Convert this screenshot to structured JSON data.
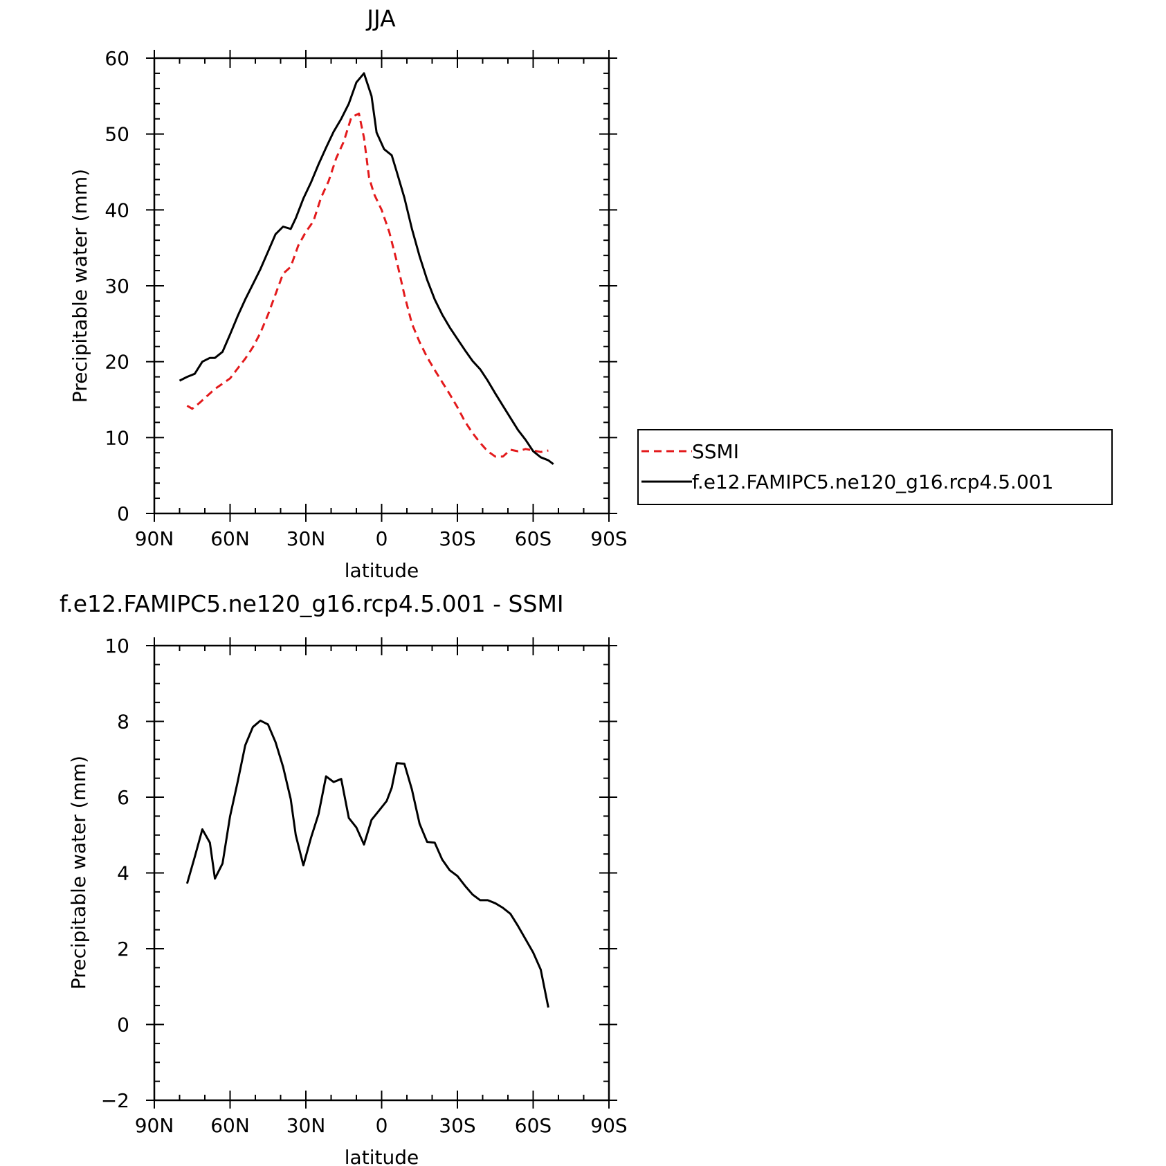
{
  "colors": {
    "model_line": "#000000",
    "obs_line": "#e31a1c",
    "axes": "#000000",
    "background": "#ffffff"
  },
  "chart_data": [
    {
      "type": "line",
      "title": "JJA",
      "xlabel": "latitude",
      "ylabel": "Precipitable water (mm)",
      "xlim": [
        90,
        -90
      ],
      "ylim": [
        0,
        60
      ],
      "x_ticks": [
        90,
        60,
        30,
        0,
        -30,
        -60,
        -90
      ],
      "x_tick_labels": [
        "90N",
        "60N",
        "30N",
        "0",
        "30S",
        "60S",
        "90S"
      ],
      "y_ticks": [
        0,
        10,
        20,
        30,
        40,
        50,
        60
      ],
      "y_tick_labels": [
        "0",
        "10",
        "20",
        "30",
        "40",
        "50",
        "60"
      ],
      "grid": false,
      "legend_position": "right",
      "series": [
        {
          "name": "SSMI",
          "style": "dashed",
          "color": "#e31a1c",
          "x": [
            77,
            75,
            72,
            69,
            66,
            63,
            60,
            57,
            54,
            51,
            48,
            45,
            42,
            39,
            36,
            33,
            30,
            27,
            24,
            21,
            18,
            15,
            12,
            9,
            7,
            5,
            3,
            0,
            -3,
            -6,
            -9,
            -12,
            -15,
            -18,
            -21,
            -24,
            -27,
            -30,
            -33,
            -36,
            -39,
            -42,
            -45,
            -48,
            -51,
            -54,
            -57,
            -60,
            -63,
            -66
          ],
          "y": [
            14.2,
            13.8,
            14.6,
            15.5,
            16.4,
            17.1,
            17.8,
            19.1,
            20.4,
            21.9,
            23.8,
            26.2,
            28.9,
            31.6,
            32.5,
            35.3,
            37.1,
            38.5,
            41.6,
            43.8,
            46.8,
            49.0,
            52.2,
            52.7,
            49.5,
            44.3,
            42.1,
            40.0,
            37.1,
            33.2,
            28.8,
            25.0,
            22.6,
            20.6,
            18.9,
            17.3,
            15.7,
            14.0,
            12.1,
            10.6,
            9.3,
            8.2,
            7.5,
            7.5,
            8.4,
            8.2,
            8.5,
            8.3,
            8.1,
            8.3
          ]
        },
        {
          "name": "f.e12.FAMIPC5.ne120_g16.rcp4.5.001",
          "style": "solid",
          "color": "#000000",
          "x": [
            80,
            77,
            74,
            71,
            68,
            66,
            63,
            60,
            57,
            54,
            51,
            48,
            45,
            42,
            39,
            36,
            34,
            31,
            28,
            25,
            22,
            19,
            16,
            13,
            10,
            7,
            4,
            2,
            -1,
            -4,
            -6,
            -9,
            -12,
            -15,
            -18,
            -21,
            -24,
            -27,
            -30,
            -33,
            -36,
            -39,
            -42,
            -45,
            -48,
            -51,
            -54,
            -57,
            -60,
            -63,
            -66,
            -68
          ],
          "y": [
            17.5,
            18.0,
            18.4,
            20.0,
            20.5,
            20.5,
            21.3,
            23.6,
            26.0,
            28.2,
            30.2,
            32.2,
            34.5,
            36.8,
            37.8,
            37.5,
            38.9,
            41.5,
            43.6,
            46.0,
            48.2,
            50.3,
            52.0,
            54.0,
            56.8,
            58.0,
            55.0,
            50.2,
            48.0,
            47.2,
            45.0,
            41.6,
            37.5,
            33.9,
            30.8,
            28.2,
            26.2,
            24.5,
            23.0,
            21.5,
            20.1,
            19.0,
            17.5,
            15.8,
            14.2,
            12.6,
            11.0,
            9.7,
            8.2,
            7.4,
            7.0,
            6.5
          ]
        }
      ]
    },
    {
      "type": "line",
      "title": "f.e12.FAMIPC5.ne120_g16.rcp4.5.001 - SSMI",
      "xlabel": "latitude",
      "ylabel": "Precipitable water (mm)",
      "xlim": [
        90,
        -90
      ],
      "ylim": [
        -2,
        10
      ],
      "x_ticks": [
        90,
        60,
        30,
        0,
        -30,
        -60,
        -90
      ],
      "x_tick_labels": [
        "90N",
        "60N",
        "30N",
        "0",
        "30S",
        "60S",
        "90S"
      ],
      "y_ticks": [
        -2,
        0,
        2,
        4,
        6,
        8,
        10
      ],
      "y_tick_labels": [
        "−2",
        "0",
        "2",
        "4",
        "6",
        "8",
        "10"
      ],
      "grid": false,
      "series": [
        {
          "style": "solid",
          "color": "#000000",
          "x": [
            77,
            74,
            71,
            68,
            66,
            63,
            60,
            57,
            54,
            51,
            48,
            45,
            42,
            39,
            36,
            34,
            31,
            28,
            25,
            22,
            19,
            16,
            13,
            10,
            7,
            4,
            1,
            -2,
            -4,
            -6,
            -9,
            -12,
            -15,
            -18,
            -21,
            -24,
            -27,
            -30,
            -33,
            -36,
            -39,
            -42,
            -45,
            -48,
            -51,
            -54,
            -57,
            -60,
            -63,
            -66
          ],
          "y": [
            3.72,
            4.42,
            5.15,
            4.8,
            3.85,
            4.25,
            5.5,
            6.4,
            7.37,
            7.85,
            8.02,
            7.92,
            7.45,
            6.8,
            5.95,
            5.0,
            4.2,
            4.92,
            5.55,
            6.55,
            6.4,
            6.48,
            5.45,
            5.2,
            4.75,
            5.4,
            5.65,
            5.9,
            6.25,
            6.9,
            6.88,
            6.2,
            5.3,
            4.82,
            4.8,
            4.35,
            4.07,
            3.92,
            3.66,
            3.43,
            3.28,
            3.28,
            3.2,
            3.08,
            2.92,
            2.6,
            2.25,
            1.9,
            1.45,
            0.45
          ]
        }
      ]
    }
  ]
}
